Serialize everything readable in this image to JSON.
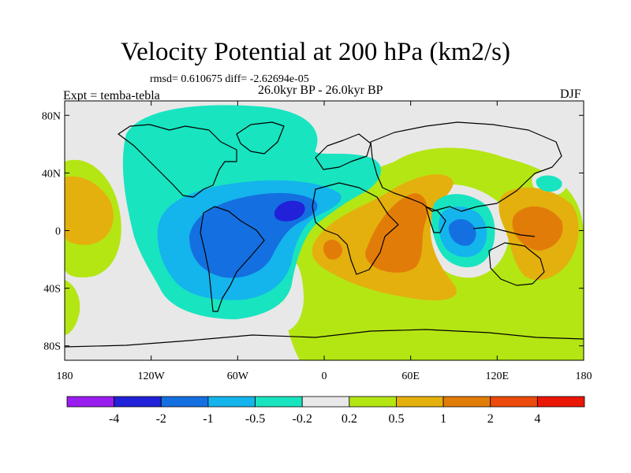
{
  "figure": {
    "title": "Velocity Potential at 200 hPa (km2/s)",
    "stats_line": "rmsd= 0.610675 diff= -2.62694e-05",
    "period": "26.0kyr BP - 26.0kyr BP",
    "experiment": "Expt = temba-tebla",
    "season": "DJF"
  },
  "axes": {
    "lon_ticks": [
      "180",
      "120W",
      "60W",
      "0",
      "60E",
      "120E",
      "180"
    ],
    "lon_values": [
      -180,
      -120,
      -60,
      0,
      60,
      120,
      180
    ],
    "lat_ticks": [
      "80N",
      "40N",
      "0",
      "40S",
      "80S"
    ],
    "lat_values": [
      80,
      40,
      0,
      -40,
      -80
    ]
  },
  "colorbar": {
    "colors": [
      "#9a1df0",
      "#2121d9",
      "#1470e0",
      "#14b4ec",
      "#18e4c0",
      "#e8e8e8",
      "#b4e614",
      "#e4b00e",
      "#e27c08",
      "#ec4a0a",
      "#ea1606"
    ],
    "labels": [
      "-4",
      "-2",
      "-1",
      "-0.5",
      "-0.2",
      "0.2",
      "0.5",
      "1",
      "2",
      "4"
    ]
  },
  "chart_data": {
    "type": "contour-map",
    "title": "Velocity Potential at 200 hPa (km2/s)",
    "variable": "Velocity Potential",
    "level_hPa": 200,
    "units": "km2/s",
    "season": "DJF",
    "levels": [
      -4,
      -2,
      -1,
      -0.5,
      -0.2,
      0.2,
      0.5,
      1,
      2,
      4
    ],
    "lon_range": [
      -180,
      180
    ],
    "lat_range": [
      -90,
      90
    ],
    "features": [
      {
        "name": "Atlantic negative center",
        "lon": -22,
        "lat": 15,
        "value_range": "-4 to -2"
      },
      {
        "name": "South America negative center",
        "lon": -60,
        "lat": -10,
        "value_range": "-2 to -1"
      },
      {
        "name": "Indo-Pacific negative center",
        "lon": 95,
        "lat": -2,
        "value_range": "-2 to -1"
      },
      {
        "name": "Africa / Indian Ocean positive center",
        "lon": 45,
        "lat": 0,
        "value_range": "1 to 2"
      },
      {
        "name": "Western Pacific positive center",
        "lon": 140,
        "lat": 5,
        "value_range": "1 to 2"
      },
      {
        "name": "Eastern Pacific positive center",
        "lon": -165,
        "lat": 10,
        "value_range": "0.5 to 1"
      }
    ]
  }
}
